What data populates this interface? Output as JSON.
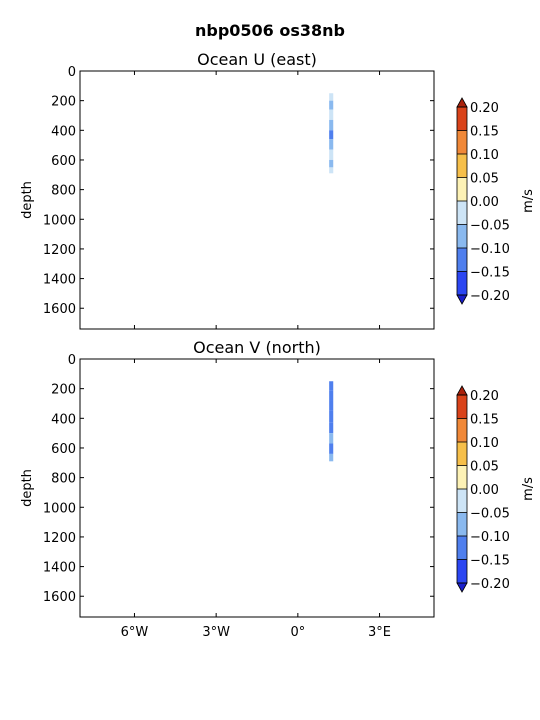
{
  "figure": {
    "title": "nbp0506 os38nb"
  },
  "chart_data": [
    {
      "type": "heatmap",
      "title": "Ocean U (east)",
      "xlabel": "",
      "ylabel": "depth",
      "xlim": [
        -8,
        5
      ],
      "ylim": [
        1740,
        0
      ],
      "yticks": [
        0,
        200,
        400,
        600,
        800,
        1000,
        1200,
        1400,
        1600
      ],
      "xticks": [
        -6,
        -3,
        0,
        3
      ],
      "xtick_labels": [
        "",
        "",
        "",
        ""
      ],
      "profile": {
        "lon_range": [
          1.15,
          1.3
        ],
        "depth_range": [
          150,
          690
        ],
        "segments": [
          {
            "depth": [
              150,
              200
            ],
            "value": -0.06
          },
          {
            "depth": [
              200,
              260
            ],
            "value": -0.12
          },
          {
            "depth": [
              260,
              330
            ],
            "value": -0.09
          },
          {
            "depth": [
              330,
              400
            ],
            "value": -0.11
          },
          {
            "depth": [
              400,
              460
            ],
            "value": -0.16
          },
          {
            "depth": [
              460,
              530
            ],
            "value": -0.1
          },
          {
            "depth": [
              530,
              600
            ],
            "value": -0.08
          },
          {
            "depth": [
              600,
              650
            ],
            "value": -0.1
          },
          {
            "depth": [
              650,
              690
            ],
            "value": -0.07
          }
        ]
      },
      "colorbar": {
        "label": "m/s",
        "ticks": [
          "0.20",
          "0.15",
          "0.10",
          "0.05",
          "0.00",
          "−0.05",
          "−0.10",
          "−0.15",
          "−0.20"
        ],
        "colors": [
          "#d9431a",
          "#f08838",
          "#f6bf4a",
          "#fdf2b6",
          "#ffffff",
          "#cde4f6",
          "#8ab9ef",
          "#4f7fee",
          "#2b46f2"
        ],
        "arrow_colors": {
          "top": "#a9220c",
          "bottom": "#1a1fcc"
        }
      }
    },
    {
      "type": "heatmap",
      "title": "Ocean V (north)",
      "xlabel": "",
      "ylabel": "depth",
      "xlim": [
        -8,
        5
      ],
      "ylim": [
        1740,
        0
      ],
      "yticks": [
        0,
        200,
        400,
        600,
        800,
        1000,
        1200,
        1400,
        1600
      ],
      "xticks": [
        -6,
        -3,
        0,
        3
      ],
      "xtick_labels": [
        "6°W",
        "3°W",
        "0°",
        "3°E"
      ],
      "profile": {
        "lon_range": [
          1.15,
          1.3
        ],
        "depth_range": [
          150,
          690
        ],
        "segments": [
          {
            "depth": [
              150,
              210
            ],
            "value": -0.17
          },
          {
            "depth": [
              210,
              280
            ],
            "value": -0.19
          },
          {
            "depth": [
              280,
              350
            ],
            "value": -0.16
          },
          {
            "depth": [
              350,
              430
            ],
            "value": -0.19
          },
          {
            "depth": [
              430,
              500
            ],
            "value": -0.17
          },
          {
            "depth": [
              500,
              570
            ],
            "value": -0.12
          },
          {
            "depth": [
              570,
              640
            ],
            "value": -0.15
          },
          {
            "depth": [
              640,
              690
            ],
            "value": -0.1
          }
        ]
      },
      "colorbar": {
        "label": "m/s",
        "ticks": [
          "0.20",
          "0.15",
          "0.10",
          "0.05",
          "0.00",
          "−0.05",
          "−0.10",
          "−0.15",
          "−0.20"
        ],
        "colors": [
          "#d9431a",
          "#f08838",
          "#f6bf4a",
          "#fdf2b6",
          "#ffffff",
          "#cde4f6",
          "#8ab9ef",
          "#4f7fee",
          "#2b46f2"
        ],
        "arrow_colors": {
          "top": "#a9220c",
          "bottom": "#1a1fcc"
        }
      }
    }
  ]
}
